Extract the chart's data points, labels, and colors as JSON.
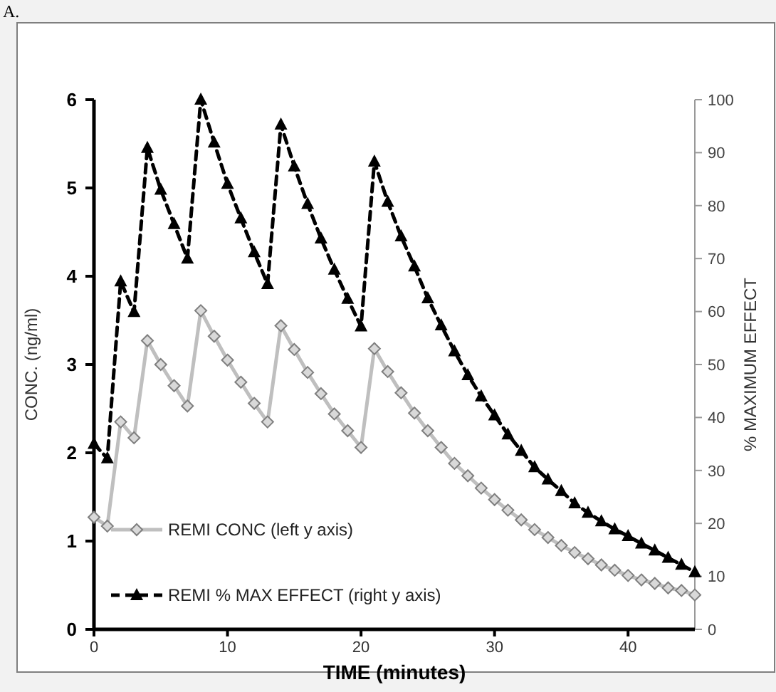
{
  "chart_data": {
    "type": "line",
    "annotations": [
      "A."
    ],
    "xlabel": "TIME (minutes)",
    "ylabel": "CONC. (ng/ml)",
    "y2label": "% MAXIMUM EFFECT",
    "x": [
      0,
      1,
      2,
      3,
      4,
      5,
      6,
      7,
      8,
      9,
      10,
      11,
      12,
      13,
      14,
      15,
      16,
      17,
      18,
      19,
      20,
      21,
      22,
      23,
      24,
      25,
      26,
      27,
      28,
      29,
      30,
      31,
      32,
      33,
      34,
      35,
      36,
      37,
      38,
      39,
      40,
      41,
      42,
      43,
      44,
      45
    ],
    "xlim": [
      0,
      45
    ],
    "xticks": [
      0,
      10,
      20,
      30,
      40
    ],
    "ylim": [
      0,
      6
    ],
    "yticks": [
      0,
      1,
      2,
      3,
      4,
      5,
      6
    ],
    "y2lim": [
      0,
      100
    ],
    "y2ticks": [
      0,
      10,
      20,
      30,
      40,
      50,
      60,
      70,
      80,
      90,
      100
    ],
    "grid": false,
    "legend": "bottom left",
    "series": [
      {
        "name": "REMI CONC (left y axis)",
        "color": "#bfbfbf",
        "marker": "diamond",
        "line_style": "solid",
        "values": [
          1.27,
          1.17,
          2.35,
          2.17,
          3.27,
          3.0,
          2.76,
          2.53,
          3.61,
          3.32,
          3.05,
          2.8,
          2.56,
          2.35,
          3.44,
          3.17,
          2.91,
          2.67,
          2.44,
          2.25,
          2.06,
          3.18,
          2.92,
          2.68,
          2.45,
          2.25,
          2.06,
          1.88,
          1.74,
          1.6,
          1.47,
          1.35,
          1.24,
          1.13,
          1.04,
          0.95,
          0.87,
          0.8,
          0.73,
          0.67,
          0.61,
          0.56,
          0.52,
          0.47,
          0.44,
          0.39
        ]
      },
      {
        "name": "REMI % MAX EFFECT (right y axis)",
        "color": "#000000",
        "marker": "triangle",
        "line_style": "dashed",
        "axis": "y2",
        "values": [
          35,
          32.3,
          65.7,
          59.9,
          90.9,
          83,
          76.5,
          70,
          100,
          91.9,
          84.1,
          77.6,
          71.2,
          65.2,
          95.3,
          87.4,
          80.3,
          73.8,
          67.9,
          62.4,
          57.2,
          88.3,
          80.7,
          74.2,
          68.5,
          62.5,
          57.4,
          52.5,
          48,
          44,
          40.4,
          36.8,
          33.7,
          30.6,
          28.3,
          26.1,
          23.8,
          22,
          20.4,
          18.9,
          17.6,
          16.2,
          14.9,
          13.5,
          12.2,
          10.8
        ]
      }
    ]
  }
}
